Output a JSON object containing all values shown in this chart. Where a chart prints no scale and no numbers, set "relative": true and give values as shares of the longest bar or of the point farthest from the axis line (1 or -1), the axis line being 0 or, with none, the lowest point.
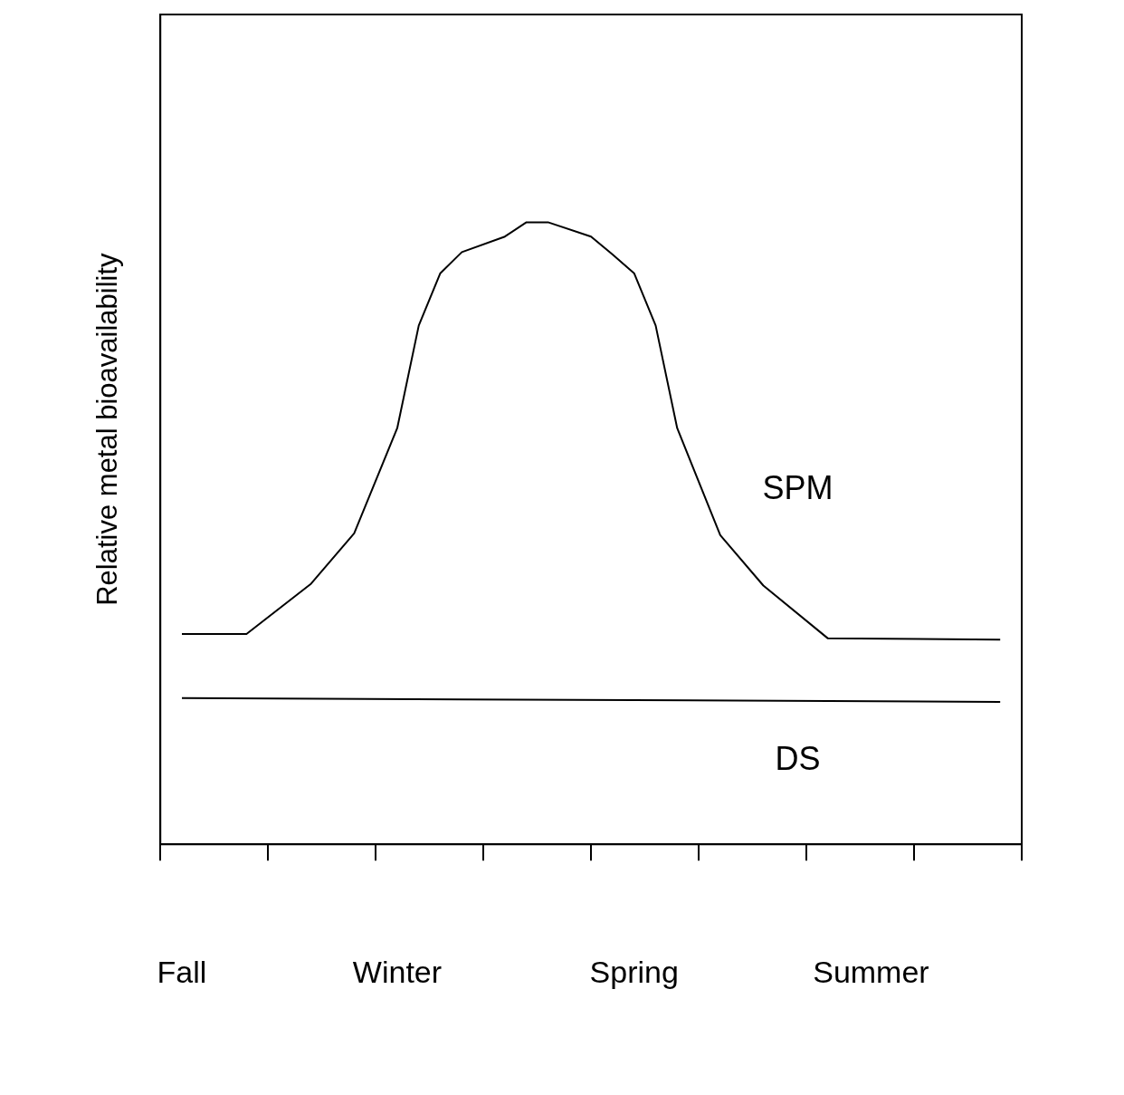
{
  "chart_data": {
    "type": "line",
    "ylabel": "Relative metal bioavailability",
    "relative": true,
    "categories": [
      null,
      "Fall",
      null,
      null,
      null,
      null,
      null,
      null,
      null,
      null,
      null,
      "Winter",
      null,
      null,
      null,
      null,
      null,
      null,
      null,
      null,
      null,
      null,
      "Spring",
      null,
      null,
      null,
      null,
      null,
      null,
      null,
      null,
      null,
      null,
      "Summer",
      null,
      null,
      null,
      null,
      null,
      null,
      null
    ],
    "grid": false,
    "legend": false,
    "marker": "none",
    "line_style": "solid",
    "series": [
      {
        "name": "SPM",
        "color": "#000000",
        "values": [
          null,
          0.338,
          null,
          null,
          0.338,
          null,
          null,
          0.419,
          null,
          0.5,
          null,
          0.669,
          0.834,
          0.918,
          0.952,
          null,
          0.977,
          1,
          1,
          null,
          0.977,
          0.948,
          0.918,
          0.834,
          0.669,
          null,
          0.497,
          null,
          0.416,
          null,
          null,
          0.331,
          null,
          null,
          null,
          null,
          null,
          null,
          null,
          0.329,
          null
        ]
      },
      {
        "name": "DS",
        "color": "#000000",
        "values": [
          null,
          0.235,
          null,
          null,
          null,
          null,
          null,
          null,
          null,
          null,
          null,
          null,
          null,
          null,
          null,
          null,
          null,
          null,
          null,
          null,
          null,
          null,
          null,
          null,
          null,
          null,
          null,
          null,
          null,
          null,
          null,
          null,
          null,
          null,
          null,
          null,
          null,
          null,
          null,
          0.229,
          null
        ]
      }
    ]
  }
}
